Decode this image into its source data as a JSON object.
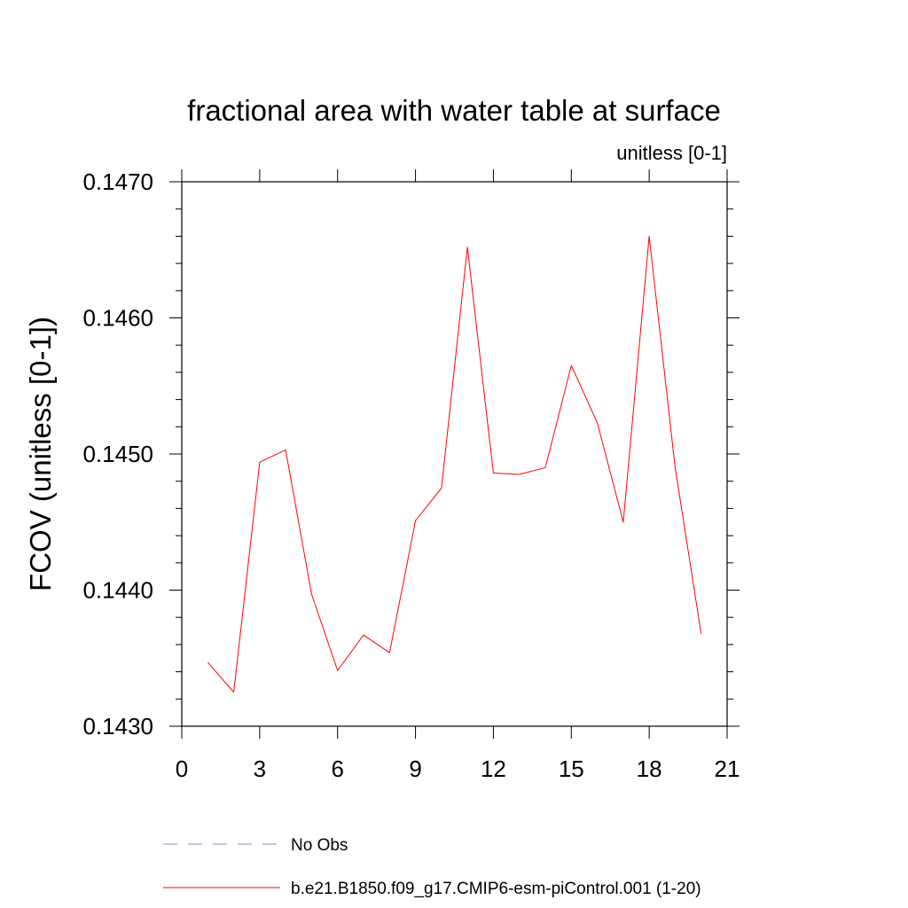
{
  "chart_data": {
    "type": "line",
    "title": "fractional area with water table at surface",
    "subtitle": "unitless [0-1]",
    "ylabel": "FCOV  (unitless [0-1])",
    "xlabel": "",
    "xlim": [
      0,
      21
    ],
    "ylim": [
      0.143,
      0.147
    ],
    "xticks": [
      0,
      3,
      6,
      9,
      12,
      15,
      18,
      21
    ],
    "xtick_labels": [
      "0",
      "3",
      "6",
      "9",
      "12",
      "15",
      "18",
      "21"
    ],
    "yticks": [
      0.143,
      0.144,
      0.145,
      0.146,
      0.147
    ],
    "ytick_labels": [
      "0.1430",
      "0.1440",
      "0.1450",
      "0.1460",
      "0.1470"
    ],
    "grid": false,
    "legend_position": "bottom",
    "series": [
      {
        "name": "b.e21.B1850.f09_g17.CMIP6-esm-piControl.001 (1-20)",
        "color": "#ff0000",
        "dash": "solid",
        "x": [
          1,
          2,
          3,
          4,
          5,
          6,
          7,
          8,
          9,
          10,
          11,
          12,
          13,
          14,
          15,
          16,
          17,
          18,
          19,
          20
        ],
        "y": [
          0.14347,
          0.14325,
          0.14494,
          0.14503,
          0.14397,
          0.14341,
          0.14367,
          0.14354,
          0.14451,
          0.14475,
          0.14652,
          0.14486,
          0.14485,
          0.1449,
          0.14565,
          0.14523,
          0.1445,
          0.1466,
          0.1449,
          0.14368
        ]
      }
    ],
    "legend": [
      {
        "label": "No Obs",
        "color": "#8888cc",
        "dash": "dashed"
      },
      {
        "label": "b.e21.B1850.f09_g17.CMIP6-esm-piControl.001 (1-20)",
        "color": "#ff0000",
        "dash": "solid"
      }
    ]
  }
}
